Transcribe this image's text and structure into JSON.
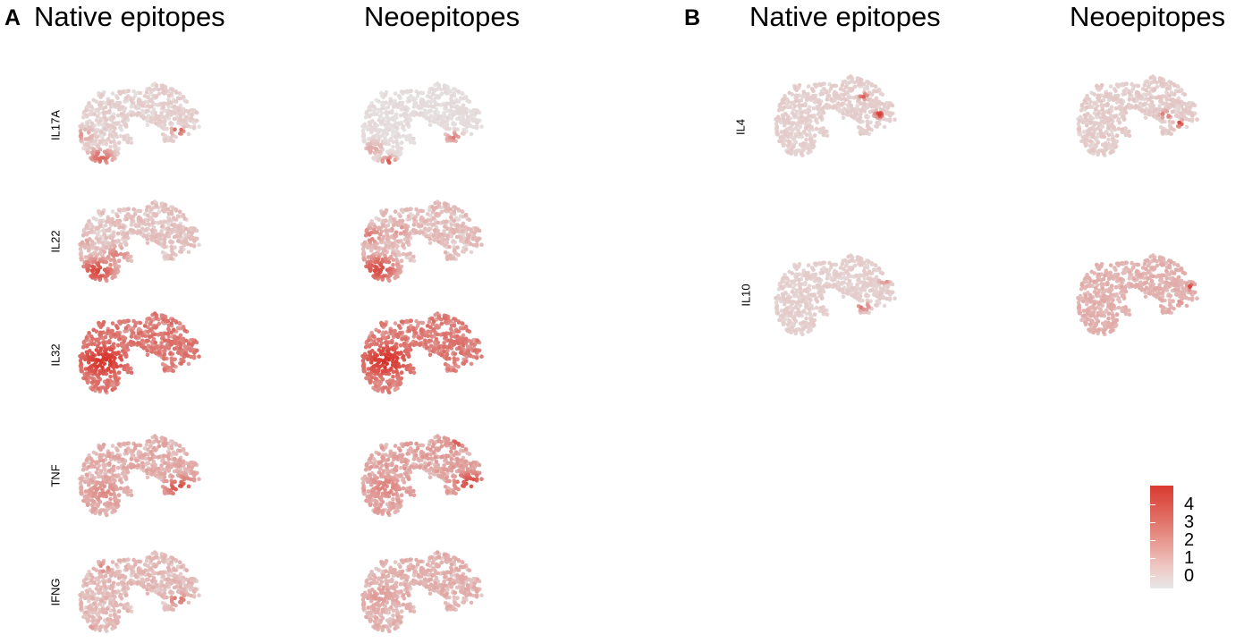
{
  "panels": [
    {
      "letter": "A",
      "columns": [
        "Native epitopes",
        "Neoepitopes"
      ],
      "genes": [
        "IL17A",
        "IL22",
        "IL32",
        "TNF",
        "IFNG"
      ]
    },
    {
      "letter": "B",
      "columns": [
        "Native epitopes",
        "Neoepitopes"
      ],
      "genes": [
        "IL4",
        "IL10"
      ]
    }
  ],
  "legend": {
    "ticks": [
      "4",
      "3",
      "2",
      "1",
      "0"
    ],
    "color_high": "#d73027",
    "color_low": "#e6e6e6"
  },
  "chart_data": {
    "type": "scatter",
    "description_of_values": "expression level per cell on UMAP embedding",
    "color_scale": {
      "min": 0,
      "max": 4.5,
      "low": "#e6e6e6",
      "high": "#d73027"
    },
    "plots": [
      {
        "panel": "A",
        "gene": "IL17A",
        "condition": "Native epitopes",
        "baseline": 0.45,
        "noise": 0.3,
        "hotspots": [
          [
            0.18,
            0.85,
            3.2,
            0.1
          ],
          [
            0.78,
            0.55,
            4.0,
            0.05
          ],
          [
            0.05,
            0.6,
            2.0,
            0.08
          ]
        ]
      },
      {
        "panel": "A",
        "gene": "IL17A",
        "condition": "Neoepitopes",
        "baseline": 0.15,
        "noise": 0.2,
        "hotspots": [
          [
            0.22,
            0.9,
            3.5,
            0.06
          ],
          [
            0.72,
            0.62,
            2.5,
            0.06
          ],
          [
            0.1,
            0.75,
            1.6,
            0.08
          ]
        ]
      },
      {
        "panel": "A",
        "gene": "IL22",
        "condition": "Native epitopes",
        "baseline": 0.7,
        "noise": 0.45,
        "hotspots": [
          [
            0.15,
            0.8,
            3.8,
            0.16
          ],
          [
            0.3,
            0.62,
            2.4,
            0.12
          ],
          [
            0.05,
            0.45,
            1.6,
            0.1
          ]
        ]
      },
      {
        "panel": "A",
        "gene": "IL22",
        "condition": "Neoepitopes",
        "baseline": 0.8,
        "noise": 0.5,
        "hotspots": [
          [
            0.14,
            0.78,
            3.8,
            0.17
          ],
          [
            0.08,
            0.4,
            2.6,
            0.12
          ],
          [
            0.3,
            0.35,
            2.0,
            0.1
          ]
        ]
      },
      {
        "panel": "A",
        "gene": "IL32",
        "condition": "Native epitopes",
        "baseline": 2.4,
        "noise": 0.7,
        "hotspots": [
          [
            0.2,
            0.55,
            4.3,
            0.3
          ],
          [
            0.75,
            0.4,
            2.8,
            0.18
          ]
        ]
      },
      {
        "panel": "A",
        "gene": "IL32",
        "condition": "Neoepitopes",
        "baseline": 2.3,
        "noise": 0.7,
        "hotspots": [
          [
            0.2,
            0.55,
            4.3,
            0.3
          ],
          [
            0.72,
            0.35,
            2.8,
            0.18
          ]
        ]
      },
      {
        "panel": "A",
        "gene": "TNF",
        "condition": "Native epitopes",
        "baseline": 1.2,
        "noise": 0.55,
        "hotspots": [
          [
            0.8,
            0.6,
            3.6,
            0.16
          ],
          [
            0.2,
            0.65,
            2.2,
            0.2
          ]
        ]
      },
      {
        "panel": "A",
        "gene": "TNF",
        "condition": "Neoepitopes",
        "baseline": 1.4,
        "noise": 0.6,
        "hotspots": [
          [
            0.85,
            0.55,
            3.8,
            0.16
          ],
          [
            0.75,
            0.1,
            3.4,
            0.08
          ],
          [
            0.2,
            0.6,
            2.4,
            0.2
          ]
        ]
      },
      {
        "panel": "A",
        "gene": "IFNG",
        "condition": "Native epitopes",
        "baseline": 0.9,
        "noise": 0.45,
        "hotspots": [
          [
            0.05,
            0.9,
            3.8,
            0.08
          ],
          [
            0.78,
            0.55,
            3.0,
            0.08
          ],
          [
            0.2,
            0.2,
            2.6,
            0.07
          ]
        ]
      },
      {
        "panel": "A",
        "gene": "IFNG",
        "condition": "Neoepitopes",
        "baseline": 1.1,
        "noise": 0.45,
        "hotspots": [
          [
            0.45,
            0.88,
            3.8,
            0.06
          ],
          [
            0.55,
            0.7,
            3.0,
            0.06
          ],
          [
            0.15,
            0.5,
            1.8,
            0.2
          ]
        ]
      },
      {
        "panel": "B",
        "gene": "IL4",
        "condition": "Native epitopes",
        "baseline": 0.5,
        "noise": 0.2,
        "hotspots": [
          [
            0.82,
            0.45,
            4.2,
            0.04
          ],
          [
            0.7,
            0.25,
            3.4,
            0.04
          ],
          [
            0.5,
            0.6,
            2.5,
            0.04
          ]
        ]
      },
      {
        "panel": "B",
        "gene": "IL4",
        "condition": "Neoepitopes",
        "baseline": 0.55,
        "noise": 0.25,
        "hotspots": [
          [
            0.8,
            0.55,
            4.3,
            0.04
          ],
          [
            0.7,
            0.45,
            3.0,
            0.05
          ]
        ]
      },
      {
        "panel": "B",
        "gene": "IL10",
        "condition": "Native epitopes",
        "baseline": 0.5,
        "noise": 0.2,
        "hotspots": [
          [
            0.86,
            0.3,
            3.8,
            0.04
          ],
          [
            0.7,
            0.6,
            3.0,
            0.05
          ]
        ]
      },
      {
        "panel": "B",
        "gene": "IL10",
        "condition": "Neoepitopes",
        "baseline": 1.2,
        "noise": 0.3,
        "hotspots": [
          [
            0.9,
            0.38,
            4.3,
            0.04
          ],
          [
            0.8,
            0.55,
            2.0,
            0.06
          ]
        ]
      }
    ]
  }
}
